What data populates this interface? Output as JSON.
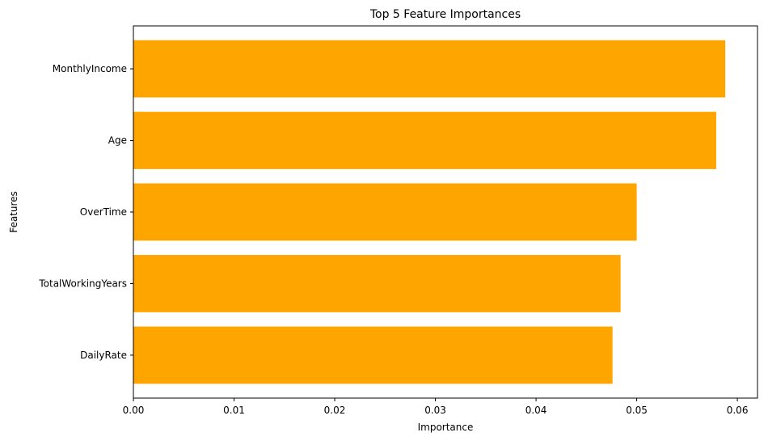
{
  "chart_data": {
    "type": "bar",
    "orientation": "horizontal",
    "title": "Top 5 Feature Importances",
    "xlabel": "Importance",
    "ylabel": "Features",
    "categories": [
      "MonthlyIncome",
      "Age",
      "OverTime",
      "TotalWorkingYears",
      "DailyRate"
    ],
    "values": [
      0.0588,
      0.0579,
      0.05,
      0.0484,
      0.0476
    ],
    "xlim": [
      0,
      0.062
    ],
    "xticks": [
      0.0,
      0.01,
      0.02,
      0.03,
      0.04,
      0.05,
      0.06
    ],
    "xtick_labels": [
      "0.00",
      "0.01",
      "0.02",
      "0.03",
      "0.04",
      "0.05",
      "0.06"
    ],
    "bar_color": "#FFA500",
    "grid": false,
    "legend": "none"
  }
}
